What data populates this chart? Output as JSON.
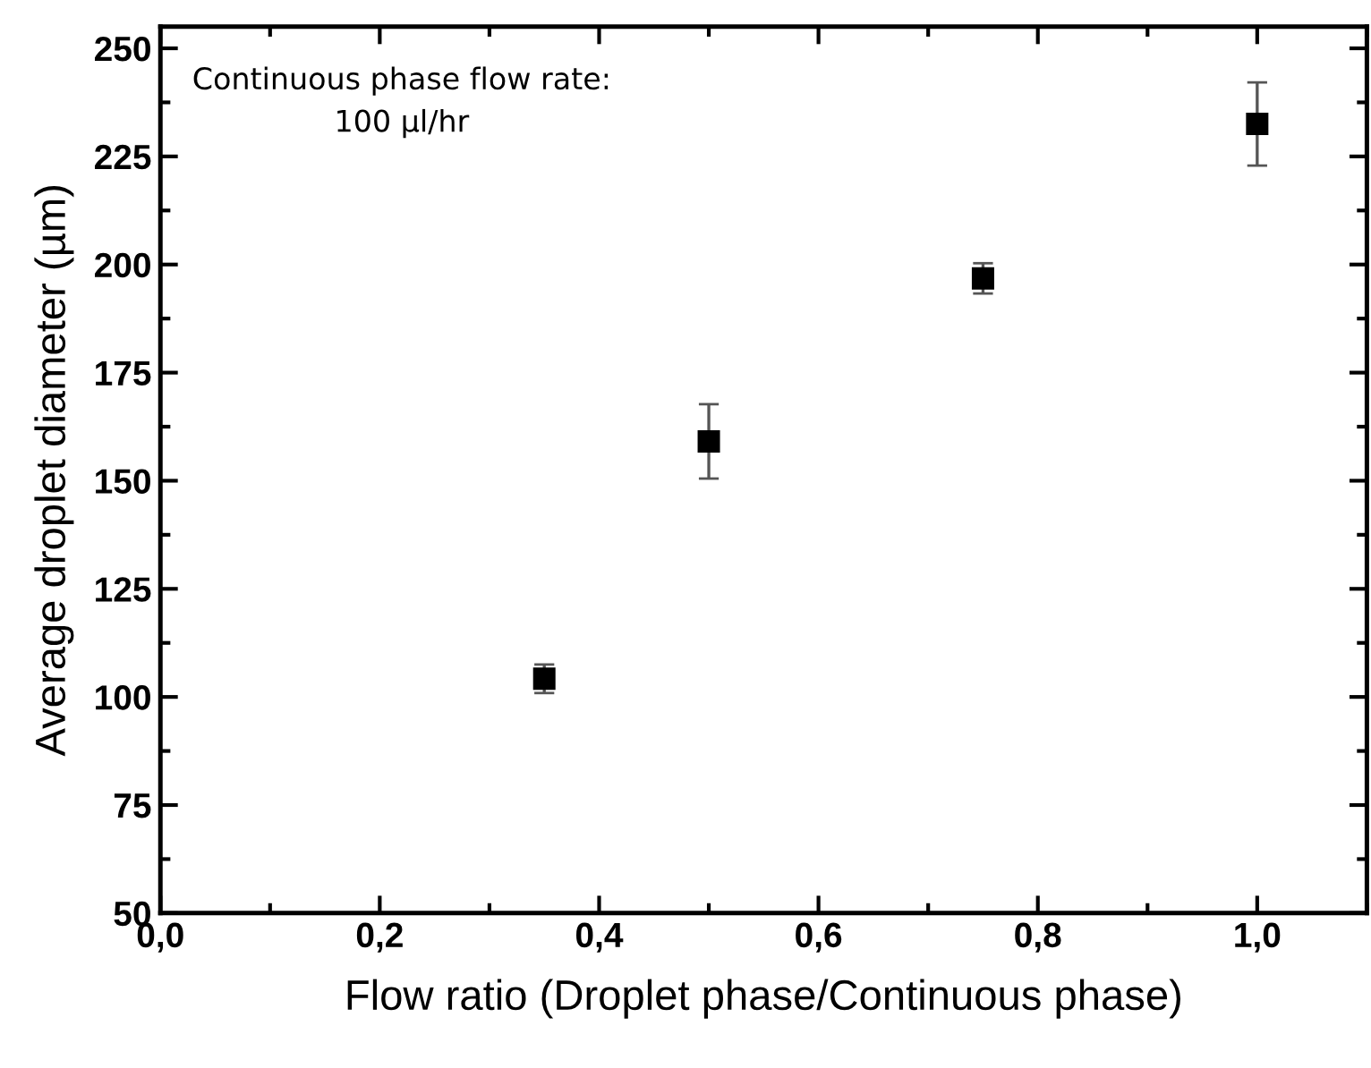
{
  "chart_data": {
    "type": "scatter",
    "xlabel": "Flow ratio (Droplet phase/Continuous phase)",
    "ylabel": "Average droplet diameter (µm)",
    "annotations": [
      "Continuous phase flow rate:\n100 µl/hr"
    ],
    "x": [
      0.35,
      0.5,
      0.75,
      1.0
    ],
    "series": [
      {
        "color": "#000000",
        "values": [
          104.2,
          159.1,
          196.8,
          232.5
        ],
        "errors": [
          3.3,
          8.6,
          3.5,
          9.6
        ]
      }
    ],
    "marker": "square",
    "legend": false,
    "grid": false,
    "xlim": [
      0,
      1.1
    ],
    "xticks": [
      {
        "value": 0,
        "label": "0,0"
      },
      {
        "value": 0.2,
        "label": "0,2"
      },
      {
        "value": 0.4,
        "label": "0,4"
      },
      {
        "value": 0.6,
        "label": "0,6"
      },
      {
        "value": 0.8,
        "label": "0,8"
      },
      {
        "value": 1.0,
        "label": "1,0"
      }
    ],
    "ylim": [
      50,
      255
    ],
    "yticks": [
      50,
      75,
      100,
      125,
      150,
      175,
      200,
      225,
      250
    ]
  }
}
